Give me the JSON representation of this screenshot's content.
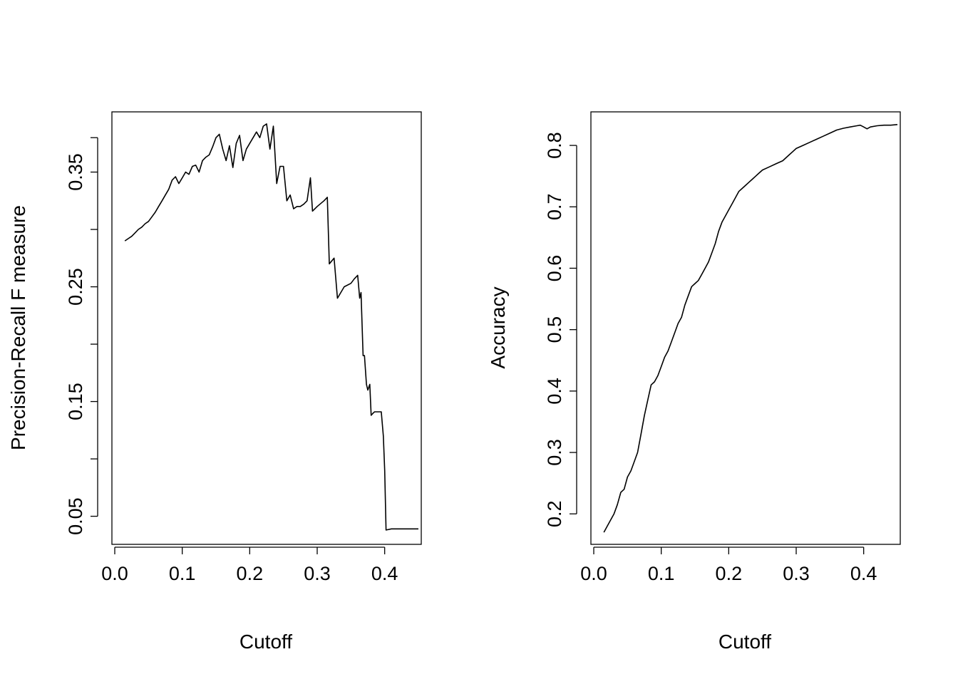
{
  "chart_data": [
    {
      "type": "line",
      "xlabel": "Cutoff",
      "ylabel": "Precision-Recall F measure",
      "xlim": [
        0.0,
        0.45
      ],
      "ylim": [
        0.028,
        0.4
      ],
      "x_ticks": [
        0.0,
        0.1,
        0.2,
        0.3,
        0.4
      ],
      "x_tick_labels": [
        "0.0",
        "0.1",
        "0.2",
        "0.3",
        "0.4"
      ],
      "y_ticks": [
        0.05,
        0.1,
        0.15,
        0.2,
        0.25,
        0.3,
        0.35,
        0.38
      ],
      "y_tick_labels": [
        "0.05",
        "",
        "0.15",
        "",
        "0.25",
        "",
        "0.35",
        ""
      ],
      "grid": false,
      "legend": "none",
      "color": "#000000",
      "series": [
        {
          "x": [
            0.015,
            0.02,
            0.025,
            0.03,
            0.035,
            0.04,
            0.045,
            0.05,
            0.055,
            0.06,
            0.065,
            0.07,
            0.075,
            0.08,
            0.085,
            0.09,
            0.095,
            0.1,
            0.105,
            0.11,
            0.115,
            0.12,
            0.125,
            0.13,
            0.135,
            0.14,
            0.145,
            0.15,
            0.155,
            0.16,
            0.165,
            0.17,
            0.175,
            0.18,
            0.185,
            0.19,
            0.195,
            0.2,
            0.205,
            0.21,
            0.215,
            0.22,
            0.225,
            0.23,
            0.235,
            0.24,
            0.245,
            0.25,
            0.255,
            0.26,
            0.265,
            0.27,
            0.275,
            0.28,
            0.285,
            0.29,
            0.293,
            0.3,
            0.31,
            0.315,
            0.318,
            0.325,
            0.33,
            0.335,
            0.34,
            0.35,
            0.355,
            0.36,
            0.363,
            0.365,
            0.368,
            0.37,
            0.373,
            0.375,
            0.378,
            0.38,
            0.383,
            0.385,
            0.39,
            0.395,
            0.398,
            0.4,
            0.402,
            0.41,
            0.42,
            0.43,
            0.44,
            0.45
          ],
          "y": [
            0.29,
            0.292,
            0.294,
            0.297,
            0.3,
            0.302,
            0.305,
            0.307,
            0.311,
            0.315,
            0.32,
            0.325,
            0.33,
            0.335,
            0.343,
            0.346,
            0.34,
            0.345,
            0.35,
            0.348,
            0.355,
            0.356,
            0.35,
            0.36,
            0.363,
            0.365,
            0.372,
            0.38,
            0.383,
            0.37,
            0.36,
            0.373,
            0.354,
            0.375,
            0.382,
            0.36,
            0.37,
            0.375,
            0.38,
            0.385,
            0.38,
            0.39,
            0.392,
            0.37,
            0.39,
            0.34,
            0.355,
            0.355,
            0.325,
            0.33,
            0.318,
            0.32,
            0.32,
            0.322,
            0.325,
            0.345,
            0.316,
            0.32,
            0.325,
            0.328,
            0.27,
            0.275,
            0.24,
            0.245,
            0.25,
            0.253,
            0.257,
            0.26,
            0.24,
            0.245,
            0.19,
            0.19,
            0.165,
            0.16,
            0.165,
            0.138,
            0.14,
            0.141,
            0.141,
            0.141,
            0.12,
            0.09,
            0.038,
            0.039,
            0.039,
            0.039,
            0.039,
            0.039
          ]
        }
      ]
    },
    {
      "type": "line",
      "xlabel": "Cutoff",
      "ylabel": "Accuracy",
      "xlim": [
        0.0,
        0.45
      ],
      "ylim": [
        0.155,
        0.85
      ],
      "x_ticks": [
        0.0,
        0.1,
        0.2,
        0.3,
        0.4
      ],
      "x_tick_labels": [
        "0.0",
        "0.1",
        "0.2",
        "0.3",
        "0.4"
      ],
      "y_ticks": [
        0.2,
        0.3,
        0.4,
        0.5,
        0.6,
        0.7,
        0.8
      ],
      "y_tick_labels": [
        "0.2",
        "0.3",
        "0.4",
        "0.5",
        "0.6",
        "0.7",
        "0.8"
      ],
      "grid": false,
      "legend": "none",
      "color": "#000000",
      "series": [
        {
          "x": [
            0.015,
            0.02,
            0.025,
            0.03,
            0.035,
            0.04,
            0.045,
            0.05,
            0.055,
            0.06,
            0.065,
            0.07,
            0.075,
            0.08,
            0.085,
            0.09,
            0.095,
            0.1,
            0.105,
            0.11,
            0.115,
            0.12,
            0.125,
            0.13,
            0.135,
            0.14,
            0.145,
            0.15,
            0.155,
            0.16,
            0.165,
            0.17,
            0.175,
            0.18,
            0.185,
            0.19,
            0.195,
            0.2,
            0.205,
            0.21,
            0.215,
            0.22,
            0.225,
            0.23,
            0.235,
            0.24,
            0.245,
            0.25,
            0.26,
            0.27,
            0.28,
            0.29,
            0.295,
            0.3,
            0.31,
            0.32,
            0.33,
            0.34,
            0.35,
            0.36,
            0.37,
            0.38,
            0.39,
            0.395,
            0.4,
            0.405,
            0.41,
            0.42,
            0.43,
            0.44,
            0.45
          ],
          "y": [
            0.17,
            0.18,
            0.19,
            0.2,
            0.215,
            0.235,
            0.24,
            0.26,
            0.27,
            0.285,
            0.3,
            0.33,
            0.36,
            0.385,
            0.41,
            0.415,
            0.425,
            0.44,
            0.455,
            0.465,
            0.48,
            0.495,
            0.51,
            0.52,
            0.54,
            0.555,
            0.57,
            0.575,
            0.58,
            0.59,
            0.6,
            0.61,
            0.625,
            0.64,
            0.66,
            0.675,
            0.685,
            0.695,
            0.705,
            0.715,
            0.725,
            0.73,
            0.735,
            0.74,
            0.745,
            0.75,
            0.755,
            0.76,
            0.765,
            0.77,
            0.775,
            0.785,
            0.79,
            0.795,
            0.8,
            0.805,
            0.81,
            0.815,
            0.82,
            0.825,
            0.828,
            0.83,
            0.832,
            0.833,
            0.83,
            0.827,
            0.83,
            0.832,
            0.833,
            0.833,
            0.834
          ]
        }
      ]
    }
  ]
}
